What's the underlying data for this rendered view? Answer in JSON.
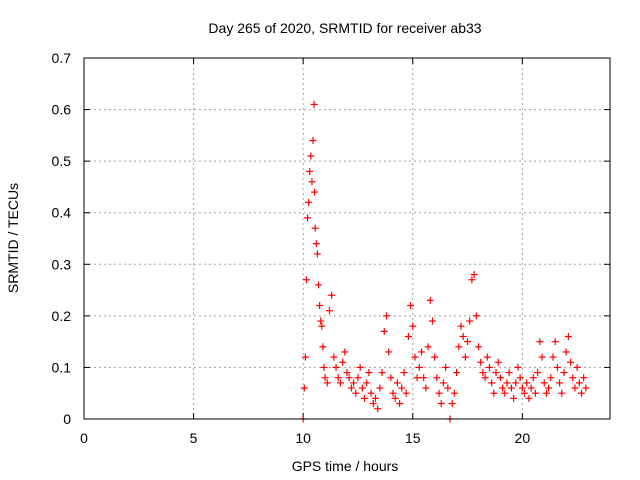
{
  "chart_data": {
    "type": "scatter",
    "title": "Day 265 of 2020, SRMTID for receiver ab33",
    "xlabel": "GPS time / hours",
    "ylabel": "SRMTID / TECUs",
    "xlim": [
      0,
      24
    ],
    "ylim": [
      0,
      0.7
    ],
    "xticks": [
      0,
      5,
      10,
      15,
      20
    ],
    "xtick_labels": [
      "0",
      "5",
      "10",
      "15",
      "20"
    ],
    "yticks": [
      0,
      0.1,
      0.2,
      0.3,
      0.4,
      0.5,
      0.6,
      0.7
    ],
    "ytick_labels": [
      "0",
      "0.1",
      "0.2",
      "0.3",
      "0.4",
      "0.5",
      "0.6",
      "0.7"
    ],
    "grid": true,
    "marker": "+",
    "color": "#ff0000",
    "series": [
      {
        "name": "SRMTID",
        "points": [
          [
            10.0,
            0.0
          ],
          [
            10.05,
            0.06
          ],
          [
            10.1,
            0.12
          ],
          [
            10.15,
            0.27
          ],
          [
            10.2,
            0.39
          ],
          [
            10.25,
            0.42
          ],
          [
            10.3,
            0.48
          ],
          [
            10.35,
            0.51
          ],
          [
            10.4,
            0.46
          ],
          [
            10.45,
            0.54
          ],
          [
            10.5,
            0.61
          ],
          [
            10.52,
            0.44
          ],
          [
            10.55,
            0.37
          ],
          [
            10.6,
            0.34
          ],
          [
            10.65,
            0.32
          ],
          [
            10.7,
            0.26
          ],
          [
            10.75,
            0.22
          ],
          [
            10.8,
            0.19
          ],
          [
            10.85,
            0.18
          ],
          [
            10.9,
            0.14
          ],
          [
            10.95,
            0.1
          ],
          [
            11.0,
            0.08
          ],
          [
            11.1,
            0.07
          ],
          [
            11.2,
            0.21
          ],
          [
            11.3,
            0.24
          ],
          [
            11.4,
            0.12
          ],
          [
            11.5,
            0.1
          ],
          [
            11.6,
            0.08
          ],
          [
            11.7,
            0.07
          ],
          [
            11.8,
            0.11
          ],
          [
            11.9,
            0.13
          ],
          [
            12.0,
            0.09
          ],
          [
            12.1,
            0.08
          ],
          [
            12.2,
            0.06
          ],
          [
            12.3,
            0.07
          ],
          [
            12.4,
            0.05
          ],
          [
            12.5,
            0.08
          ],
          [
            12.6,
            0.1
          ],
          [
            12.7,
            0.06
          ],
          [
            12.8,
            0.04
          ],
          [
            12.9,
            0.07
          ],
          [
            13.0,
            0.09
          ],
          [
            13.1,
            0.05
          ],
          [
            13.2,
            0.03
          ],
          [
            13.3,
            0.04
          ],
          [
            13.4,
            0.02
          ],
          [
            13.5,
            0.06
          ],
          [
            13.6,
            0.09
          ],
          [
            13.7,
            0.17
          ],
          [
            13.8,
            0.2
          ],
          [
            13.9,
            0.13
          ],
          [
            14.0,
            0.08
          ],
          [
            14.1,
            0.05
          ],
          [
            14.2,
            0.04
          ],
          [
            14.3,
            0.07
          ],
          [
            14.4,
            0.03
          ],
          [
            14.5,
            0.06
          ],
          [
            14.6,
            0.09
          ],
          [
            14.7,
            0.05
          ],
          [
            14.8,
            0.16
          ],
          [
            14.9,
            0.22
          ],
          [
            15.0,
            0.18
          ],
          [
            15.1,
            0.12
          ],
          [
            15.2,
            0.08
          ],
          [
            15.3,
            0.1
          ],
          [
            15.4,
            0.13
          ],
          [
            15.5,
            0.08
          ],
          [
            15.6,
            0.06
          ],
          [
            15.7,
            0.14
          ],
          [
            15.8,
            0.23
          ],
          [
            15.9,
            0.19
          ],
          [
            16.0,
            0.12
          ],
          [
            16.1,
            0.08
          ],
          [
            16.2,
            0.05
          ],
          [
            16.3,
            0.03
          ],
          [
            16.4,
            0.07
          ],
          [
            16.5,
            0.1
          ],
          [
            16.6,
            0.06
          ],
          [
            16.7,
            0.0
          ],
          [
            16.8,
            0.03
          ],
          [
            16.9,
            0.05
          ],
          [
            17.0,
            0.09
          ],
          [
            17.1,
            0.14
          ],
          [
            17.2,
            0.18
          ],
          [
            17.3,
            0.16
          ],
          [
            17.4,
            0.12
          ],
          [
            17.5,
            0.15
          ],
          [
            17.6,
            0.19
          ],
          [
            17.7,
            0.27
          ],
          [
            17.8,
            0.28
          ],
          [
            17.9,
            0.2
          ],
          [
            18.0,
            0.14
          ],
          [
            18.1,
            0.11
          ],
          [
            18.2,
            0.09
          ],
          [
            18.3,
            0.08
          ],
          [
            18.4,
            0.12
          ],
          [
            18.5,
            0.1
          ],
          [
            18.6,
            0.07
          ],
          [
            18.7,
            0.05
          ],
          [
            18.8,
            0.09
          ],
          [
            18.9,
            0.11
          ],
          [
            19.0,
            0.08
          ],
          [
            19.1,
            0.06
          ],
          [
            19.2,
            0.05
          ],
          [
            19.3,
            0.07
          ],
          [
            19.4,
            0.09
          ],
          [
            19.5,
            0.06
          ],
          [
            19.6,
            0.04
          ],
          [
            19.7,
            0.07
          ],
          [
            19.8,
            0.1
          ],
          [
            19.9,
            0.08
          ],
          [
            20.0,
            0.06
          ],
          [
            20.1,
            0.05
          ],
          [
            20.2,
            0.07
          ],
          [
            20.3,
            0.04
          ],
          [
            20.4,
            0.06
          ],
          [
            20.5,
            0.08
          ],
          [
            20.6,
            0.05
          ],
          [
            20.7,
            0.09
          ],
          [
            20.8,
            0.15
          ],
          [
            20.9,
            0.12
          ],
          [
            21.0,
            0.07
          ],
          [
            21.1,
            0.05
          ],
          [
            21.2,
            0.06
          ],
          [
            21.3,
            0.08
          ],
          [
            21.4,
            0.12
          ],
          [
            21.5,
            0.15
          ],
          [
            21.6,
            0.1
          ],
          [
            21.7,
            0.07
          ],
          [
            21.8,
            0.05
          ],
          [
            21.9,
            0.09
          ],
          [
            22.0,
            0.13
          ],
          [
            22.1,
            0.16
          ],
          [
            22.2,
            0.11
          ],
          [
            22.3,
            0.08
          ],
          [
            22.4,
            0.06
          ],
          [
            22.5,
            0.1
          ],
          [
            22.6,
            0.07
          ],
          [
            22.7,
            0.05
          ],
          [
            22.8,
            0.08
          ],
          [
            22.9,
            0.06
          ]
        ]
      }
    ]
  }
}
